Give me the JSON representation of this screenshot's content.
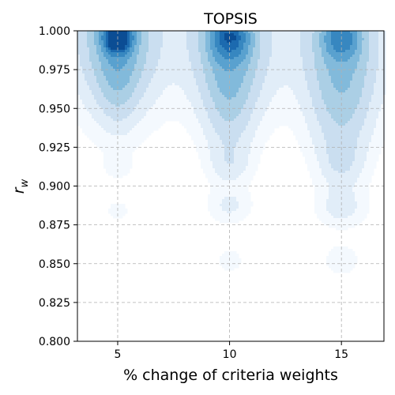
{
  "chart_data": {
    "type": "density_contour",
    "title": "TOPSIS",
    "xlabel": "% change of criteria weights",
    "ylabel_base": "r",
    "ylabel_sub": "w",
    "xlim": [
      3.2,
      16.9
    ],
    "ylim": [
      0.8,
      1.0
    ],
    "x_ticks": [
      5,
      10,
      15
    ],
    "x_tick_labels": [
      "5",
      "10",
      "15"
    ],
    "y_ticks": [
      0.8,
      0.825,
      0.85,
      0.875,
      0.9,
      0.925,
      0.95,
      0.975,
      1.0
    ],
    "y_tick_labels": [
      "0.800",
      "0.825",
      "0.850",
      "0.875",
      "0.900",
      "0.925",
      "0.950",
      "0.975",
      "1.000"
    ],
    "grid": true,
    "colormap": "Blues",
    "colors": [
      "#f4f9fe",
      "#e1edf8",
      "#cadef0",
      "#abcfe5",
      "#82badb",
      "#59a1cf",
      "#3787c0",
      "#1c6aaf",
      "#0b4d94"
    ],
    "groups": [
      {
        "x": 5,
        "blobs": [
          {
            "y": 0.9965,
            "xs": 1.3,
            "ys": 0.032,
            "w": 1.0
          },
          {
            "y": 0.9965,
            "xs": 0.38,
            "ys": 0.0065,
            "w": 3.2
          },
          {
            "y": 0.9935,
            "xs": 0.25,
            "ys": 0.0035,
            "w": 2.6
          },
          {
            "y": 0.972,
            "xs": 0.55,
            "ys": 0.022,
            "w": 0.35
          },
          {
            "y": 0.913,
            "xs": 0.42,
            "ys": 0.0055,
            "w": 0.14
          },
          {
            "y": 0.884,
            "xs": 0.42,
            "ys": 0.0055,
            "w": 0.12
          }
        ]
      },
      {
        "x": 10,
        "blobs": [
          {
            "y": 0.9965,
            "xs": 1.35,
            "ys": 0.033,
            "w": 0.85
          },
          {
            "y": 0.9955,
            "xs": 0.5,
            "ys": 0.0085,
            "w": 1.8
          },
          {
            "y": 0.9958,
            "xs": 0.16,
            "ys": 0.0012,
            "w": 1.4
          },
          {
            "y": 0.96,
            "xs": 0.75,
            "ys": 0.032,
            "w": 0.45
          },
          {
            "y": 0.914,
            "xs": 0.6,
            "ys": 0.008,
            "w": 0.18
          },
          {
            "y": 0.887,
            "xs": 0.65,
            "ys": 0.0075,
            "w": 0.2
          },
          {
            "y": 0.852,
            "xs": 0.48,
            "ys": 0.006,
            "w": 0.13
          }
        ]
      },
      {
        "x": 15,
        "blobs": [
          {
            "y": 0.9965,
            "xs": 1.4,
            "ys": 0.035,
            "w": 0.7
          },
          {
            "y": 0.9955,
            "xs": 0.48,
            "ys": 0.008,
            "w": 1.25
          },
          {
            "y": 0.955,
            "xs": 0.9,
            "ys": 0.035,
            "w": 0.45
          },
          {
            "y": 0.915,
            "xs": 0.6,
            "ys": 0.01,
            "w": 0.2
          },
          {
            "y": 0.886,
            "xs": 0.72,
            "ys": 0.008,
            "w": 0.22
          },
          {
            "y": 0.852,
            "xs": 0.55,
            "ys": 0.007,
            "w": 0.16
          }
        ]
      }
    ],
    "levels": [
      0.08,
      0.2,
      0.38,
      0.6,
      0.85,
      1.15,
      1.6,
      2.2,
      2.9
    ]
  }
}
